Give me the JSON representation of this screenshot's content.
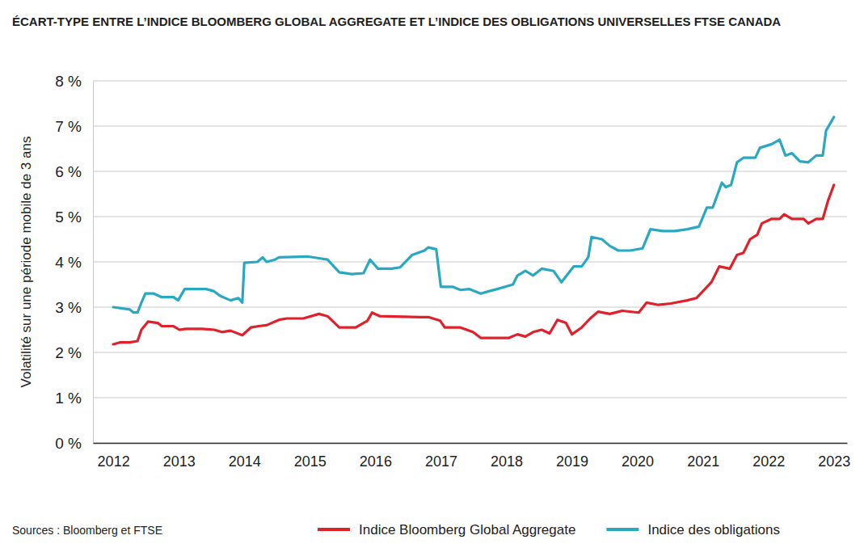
{
  "chart_data": {
    "type": "line",
    "title": "ÉCART-TYPE ENTRE L’INDICE BLOOMBERG GLOBAL AGGREGATE ET L’INDICE DES OBLIGATIONS UNIVERSELLES FTSE CANADA",
    "y_label": "Volatilité sur une période mobile de 3 ans",
    "source": "Sources : Bloomberg et FTSE",
    "xlim": [
      2011.69,
      2023.2
    ],
    "xticks": [
      2012,
      2013,
      2014,
      2015,
      2016,
      2017,
      2018,
      2019,
      2020,
      2021,
      2022,
      2023
    ],
    "ylim": [
      0,
      8
    ],
    "yticks": [
      {
        "value": 0,
        "label": "0 %"
      },
      {
        "value": 1,
        "label": "1 %"
      },
      {
        "value": 2,
        "label": "2 %"
      },
      {
        "value": 3,
        "label": "3 %"
      },
      {
        "value": 4,
        "label": "4 %"
      },
      {
        "value": 5,
        "label": "5 %"
      },
      {
        "value": 6,
        "label": "6 %"
      },
      {
        "value": 7,
        "label": "7 %"
      },
      {
        "value": 8,
        "label": "8 %"
      }
    ],
    "grid": true,
    "legend": "bottom",
    "series": [
      {
        "name": "Indice Bloomberg Global Aggregate",
        "color": "#e0202a",
        "x": [
          2012.0,
          2012.1,
          2012.25,
          2012.37,
          2012.43,
          2012.53,
          2012.68,
          2012.74,
          2012.92,
          2013.01,
          2013.11,
          2013.36,
          2013.54,
          2013.66,
          2013.79,
          2013.97,
          2014.1,
          2014.22,
          2014.34,
          2014.53,
          2014.65,
          2014.9,
          2015.14,
          2015.27,
          2015.45,
          2015.7,
          2015.88,
          2015.95,
          2016.07,
          2016.69,
          2016.81,
          2016.99,
          2017.06,
          2017.3,
          2017.49,
          2017.61,
          2018.04,
          2018.17,
          2018.29,
          2018.41,
          2018.54,
          2018.66,
          2018.78,
          2018.91,
          2019.0,
          2019.15,
          2019.28,
          2019.4,
          2019.58,
          2019.77,
          2020.02,
          2020.14,
          2020.32,
          2020.51,
          2020.76,
          2020.9,
          2021.0,
          2021.13,
          2021.25,
          2021.41,
          2021.52,
          2021.62,
          2021.72,
          2021.83,
          2021.9,
          2022.05,
          2022.17,
          2022.24,
          2022.36,
          2022.54,
          2022.61,
          2022.73,
          2022.83,
          2022.91,
          2023.0
        ],
        "values": [
          2.18,
          2.22,
          2.22,
          2.25,
          2.5,
          2.68,
          2.65,
          2.58,
          2.58,
          2.5,
          2.52,
          2.52,
          2.5,
          2.45,
          2.48,
          2.38,
          2.55,
          2.58,
          2.6,
          2.72,
          2.75,
          2.75,
          2.85,
          2.8,
          2.55,
          2.55,
          2.7,
          2.88,
          2.8,
          2.78,
          2.78,
          2.7,
          2.55,
          2.55,
          2.45,
          2.32,
          2.32,
          2.4,
          2.35,
          2.45,
          2.5,
          2.42,
          2.72,
          2.65,
          2.4,
          2.55,
          2.75,
          2.9,
          2.85,
          2.92,
          2.88,
          3.1,
          3.05,
          3.08,
          3.15,
          3.2,
          3.35,
          3.55,
          3.9,
          3.85,
          4.15,
          4.2,
          4.5,
          4.6,
          4.85,
          4.95,
          4.95,
          5.05,
          4.95,
          4.95,
          4.85,
          4.95,
          4.95,
          5.35,
          5.7
        ]
      },
      {
        "name": "Indice des obligations",
        "color": "#2aa8c1",
        "x": [
          2012.0,
          2012.25,
          2012.31,
          2012.37,
          2012.43,
          2012.49,
          2012.62,
          2012.74,
          2012.92,
          2012.99,
          2013.09,
          2013.42,
          2013.54,
          2013.63,
          2013.79,
          2013.91,
          2013.97,
          2014.0,
          2014.2,
          2014.28,
          2014.34,
          2014.47,
          2014.53,
          2014.96,
          2015.14,
          2015.27,
          2015.45,
          2015.64,
          2015.82,
          2015.92,
          2016.04,
          2016.25,
          2016.38,
          2016.56,
          2016.75,
          2016.81,
          2016.93,
          2017.0,
          2017.18,
          2017.3,
          2017.43,
          2017.61,
          2017.73,
          2017.86,
          2018.1,
          2018.17,
          2018.29,
          2018.41,
          2018.54,
          2018.72,
          2018.84,
          2019.03,
          2019.15,
          2019.25,
          2019.3,
          2019.46,
          2019.58,
          2019.71,
          2019.89,
          2020.08,
          2020.2,
          2020.39,
          2020.57,
          2020.76,
          2020.94,
          2021.06,
          2021.15,
          2021.29,
          2021.35,
          2021.43,
          2021.52,
          2021.62,
          2021.8,
          2021.87,
          2022.05,
          2022.17,
          2022.26,
          2022.36,
          2022.48,
          2022.61,
          2022.73,
          2022.83,
          2022.88,
          2023.0
        ],
        "values": [
          3.0,
          2.95,
          2.88,
          2.88,
          3.1,
          3.3,
          3.3,
          3.22,
          3.22,
          3.15,
          3.4,
          3.4,
          3.35,
          3.25,
          3.15,
          3.2,
          3.1,
          3.98,
          4.0,
          4.1,
          4.0,
          4.05,
          4.1,
          4.12,
          4.08,
          4.05,
          3.77,
          3.73,
          3.75,
          4.05,
          3.85,
          3.85,
          3.88,
          4.15,
          4.25,
          4.32,
          4.28,
          3.45,
          3.45,
          3.38,
          3.4,
          3.3,
          3.35,
          3.4,
          3.5,
          3.7,
          3.8,
          3.7,
          3.85,
          3.8,
          3.55,
          3.9,
          3.9,
          4.1,
          4.55,
          4.5,
          4.35,
          4.25,
          4.25,
          4.3,
          4.72,
          4.68,
          4.68,
          4.72,
          4.78,
          5.2,
          5.2,
          5.75,
          5.65,
          5.7,
          6.2,
          6.3,
          6.3,
          6.52,
          6.6,
          6.7,
          6.35,
          6.4,
          6.22,
          6.2,
          6.35,
          6.35,
          6.9,
          7.2
        ]
      }
    ]
  }
}
